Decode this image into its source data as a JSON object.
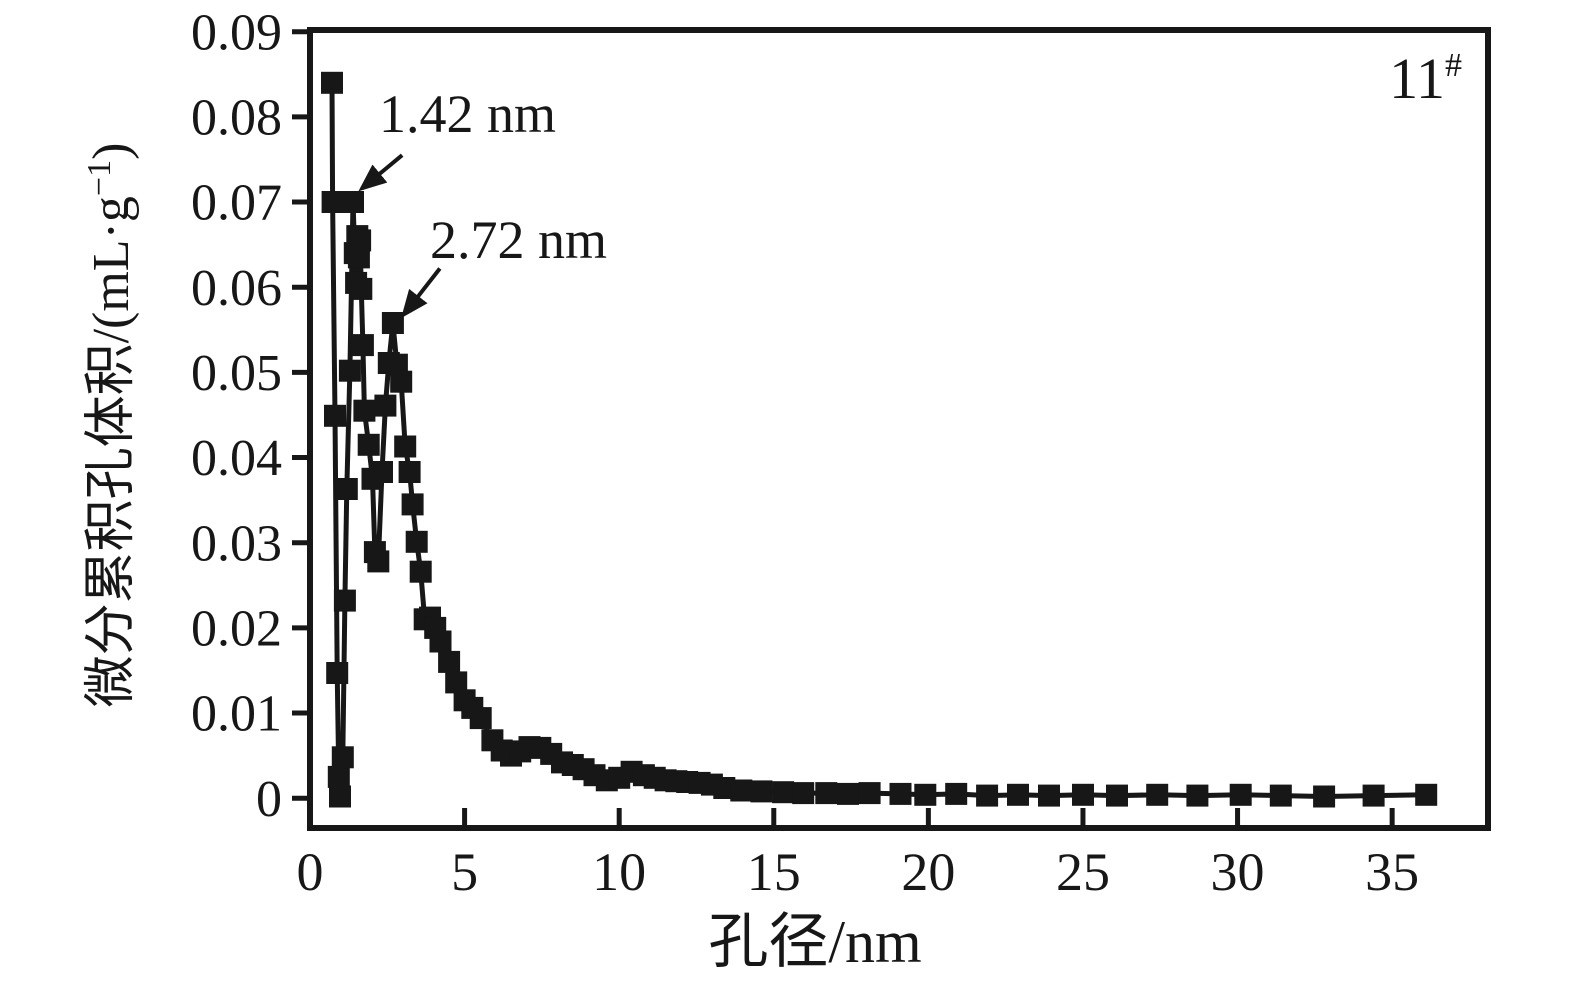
{
  "chart_data": {
    "type": "line",
    "title": "",
    "sample_label": {
      "base": "11",
      "sup": "#"
    },
    "xlabel": "孔径/nm",
    "ylabel": {
      "base": "微分累积孔体积/(mL·g",
      "sup": "−1",
      "close": ")"
    },
    "xlim": [
      0,
      38.1
    ],
    "ylim": [
      -0.0035,
      0.0902
    ],
    "grid": false,
    "legend": null,
    "marker": "square",
    "marker_size_px": 22,
    "line_color": "#171717",
    "background_color": "#ffffff",
    "xticks": [
      {
        "v": 0,
        "label": "0"
      },
      {
        "v": 5,
        "label": "5"
      },
      {
        "v": 10,
        "label": "10"
      },
      {
        "v": 15,
        "label": "15"
      },
      {
        "v": 20,
        "label": "20"
      },
      {
        "v": 25,
        "label": "25"
      },
      {
        "v": 30,
        "label": "30"
      },
      {
        "v": 35,
        "label": "35"
      }
    ],
    "yticks": [
      {
        "v": 0,
        "label": "0"
      },
      {
        "v": 0.01,
        "label": "0.01"
      },
      {
        "v": 0.02,
        "label": "0.02"
      },
      {
        "v": 0.03,
        "label": "0.03"
      },
      {
        "v": 0.04,
        "label": "0.04"
      },
      {
        "v": 0.05,
        "label": "0.05"
      },
      {
        "v": 0.06,
        "label": "0.06"
      },
      {
        "v": 0.07,
        "label": "0.07"
      },
      {
        "v": 0.08,
        "label": "0.08"
      },
      {
        "v": 0.09,
        "label": "0.09"
      }
    ],
    "annotations": [
      {
        "text": "1.42 nm",
        "text_x": 2.23,
        "text_y": 0.0782,
        "arrow_from": [
          2.98,
          0.0755
        ],
        "arrow_to": [
          1.68,
          0.0716
        ]
      },
      {
        "text": "2.72 nm",
        "text_x": 3.88,
        "text_y": 0.0634,
        "arrow_from": [
          4.2,
          0.0622
        ],
        "arrow_to": [
          3.04,
          0.0568
        ]
      }
    ],
    "series": [
      {
        "name": "11#",
        "points": [
          [
            0.71,
            0.084
          ],
          [
            0.73,
            0.07
          ],
          [
            0.81,
            0.0449
          ],
          [
            0.88,
            0.0147
          ],
          [
            0.93,
            0.0025
          ],
          [
            0.97,
            0.0002
          ],
          [
            1.06,
            0.0048
          ],
          [
            1.13,
            0.0232
          ],
          [
            1.19,
            0.0363
          ],
          [
            1.29,
            0.0502
          ],
          [
            1.39,
            0.07
          ],
          [
            1.45,
            0.064
          ],
          [
            1.49,
            0.0605
          ],
          [
            1.53,
            0.066
          ],
          [
            1.58,
            0.0635
          ],
          [
            1.62,
            0.0655
          ],
          [
            1.66,
            0.0598
          ],
          [
            1.71,
            0.0532
          ],
          [
            1.76,
            0.0455
          ],
          [
            1.9,
            0.0415
          ],
          [
            2.02,
            0.0375
          ],
          [
            2.1,
            0.0289
          ],
          [
            2.21,
            0.0278
          ],
          [
            2.33,
            0.0383
          ],
          [
            2.44,
            0.0461
          ],
          [
            2.55,
            0.0511
          ],
          [
            2.68,
            0.0558
          ],
          [
            2.81,
            0.0509
          ],
          [
            2.95,
            0.0489
          ],
          [
            3.08,
            0.0413
          ],
          [
            3.22,
            0.0383
          ],
          [
            3.32,
            0.0345
          ],
          [
            3.45,
            0.0301
          ],
          [
            3.58,
            0.0266
          ],
          [
            3.71,
            0.021
          ],
          [
            3.88,
            0.0212
          ],
          [
            4.05,
            0.02
          ],
          [
            4.22,
            0.0184
          ],
          [
            4.5,
            0.016
          ],
          [
            4.73,
            0.0136
          ],
          [
            5.0,
            0.0115
          ],
          [
            5.25,
            0.0106
          ],
          [
            5.52,
            0.0094
          ],
          [
            5.9,
            0.0068
          ],
          [
            6.2,
            0.0056
          ],
          [
            6.5,
            0.005
          ],
          [
            6.8,
            0.0055
          ],
          [
            7.1,
            0.006
          ],
          [
            7.45,
            0.0059
          ],
          [
            7.8,
            0.0052
          ],
          [
            8.15,
            0.0042
          ],
          [
            8.5,
            0.0039
          ],
          [
            8.85,
            0.0034
          ],
          [
            9.2,
            0.0027
          ],
          [
            9.6,
            0.0021
          ],
          [
            10.0,
            0.0024
          ],
          [
            10.4,
            0.0031
          ],
          [
            10.8,
            0.0027
          ],
          [
            11.15,
            0.0024
          ],
          [
            11.5,
            0.0021
          ],
          [
            11.85,
            0.002
          ],
          [
            12.2,
            0.0019
          ],
          [
            12.6,
            0.0018
          ],
          [
            13.0,
            0.0016
          ],
          [
            13.4,
            0.0012
          ],
          [
            13.95,
            0.0009
          ],
          [
            14.6,
            0.0008
          ],
          [
            15.3,
            0.0007
          ],
          [
            15.95,
            0.0006
          ],
          [
            16.7,
            0.0006
          ],
          [
            17.4,
            0.0005
          ],
          [
            18.1,
            0.0006
          ],
          [
            19.1,
            0.0005
          ],
          [
            19.9,
            0.0004
          ],
          [
            20.9,
            0.0005
          ],
          [
            21.9,
            0.0003
          ],
          [
            22.9,
            0.0004
          ],
          [
            23.9,
            0.0003
          ],
          [
            25.0,
            0.0004
          ],
          [
            26.1,
            0.0003
          ],
          [
            27.4,
            0.0004
          ],
          [
            28.7,
            0.0003
          ],
          [
            30.1,
            0.0004
          ],
          [
            31.4,
            0.0003
          ],
          [
            32.8,
            0.0002
          ],
          [
            34.4,
            0.0003
          ],
          [
            36.1,
            0.0004
          ]
        ]
      }
    ]
  }
}
